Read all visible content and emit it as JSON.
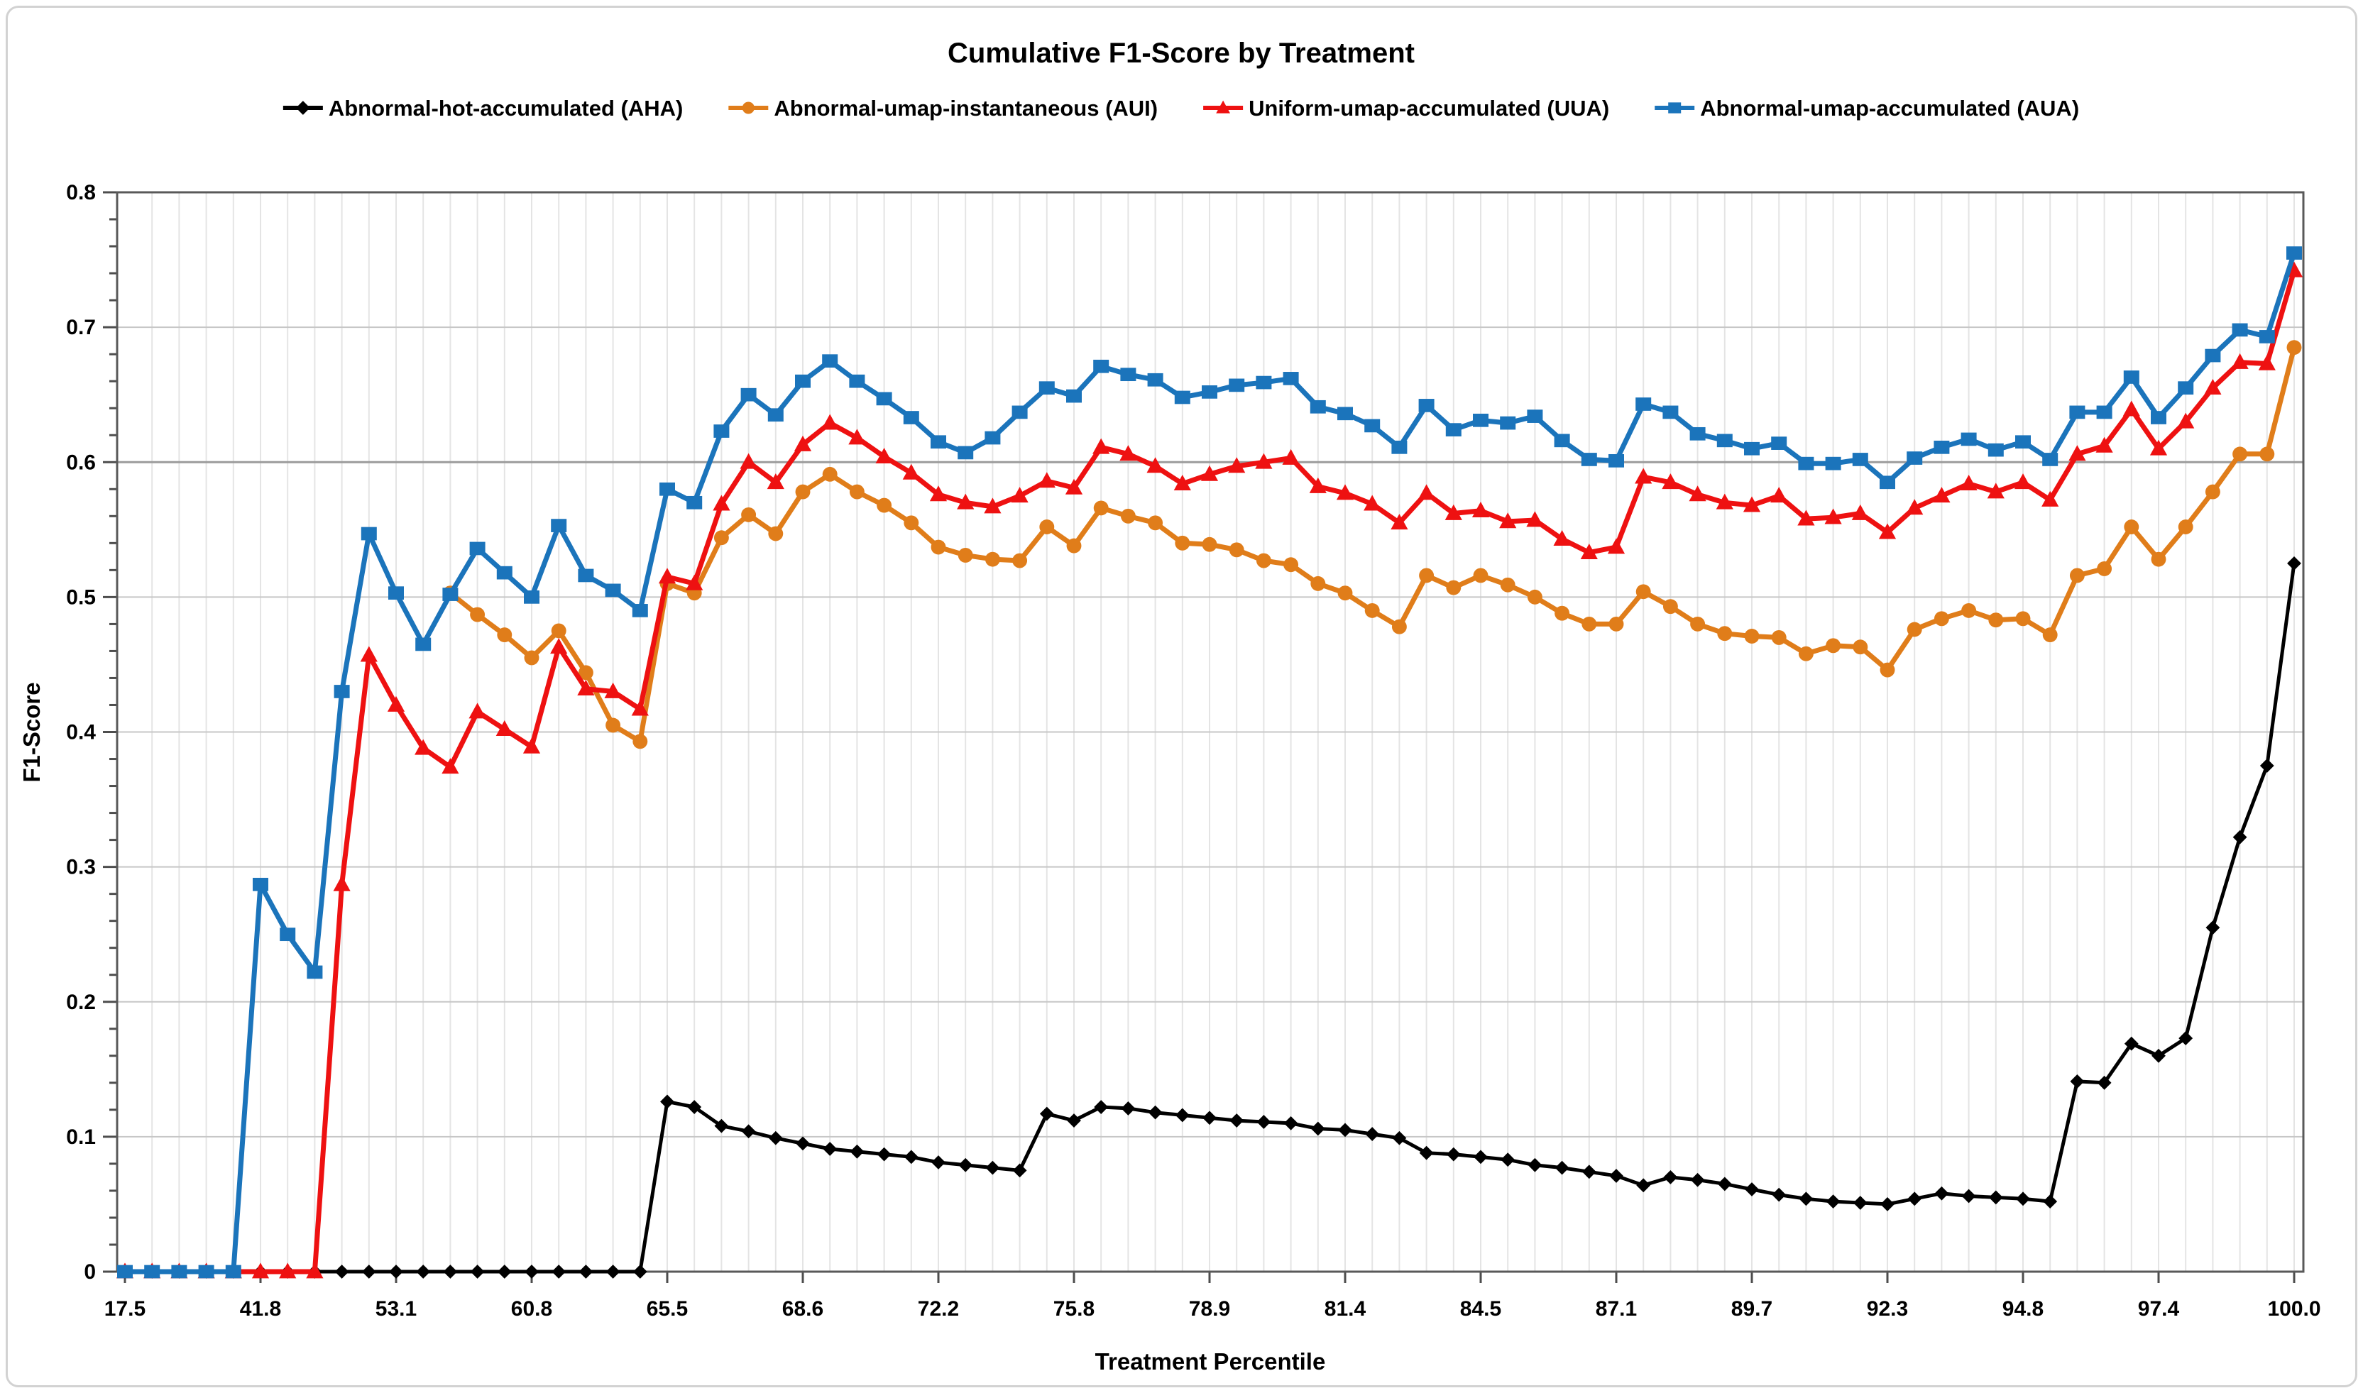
{
  "page": {
    "title": "Cumulative F1-Score by Treatment"
  },
  "chart_data": {
    "type": "line",
    "title": "Cumulative F1-Score by Treatment",
    "xlabel": "Treatment Percentile",
    "ylabel": "F1-Score",
    "ylim": [
      0,
      0.8
    ],
    "y_major_step": 0.1,
    "y_minor_step": 0.02,
    "grid": true,
    "legend_position": "top",
    "n_points": 81,
    "x_description": "81 evenly spaced treatment-percentile samples; every 5th point carries an axis label",
    "x_tick_every": 5,
    "x_tick_labels": [
      "17.5",
      "41.8",
      "53.1",
      "60.8",
      "65.5",
      "68.6",
      "72.2",
      "75.8",
      "78.9",
      "81.4",
      "84.5",
      "87.1",
      "89.7",
      "92.3",
      "94.8",
      "97.4",
      "100.0"
    ],
    "draw_order": [
      "AUI",
      "AHA",
      "UUA",
      "AUA"
    ],
    "series": [
      {
        "name": "Abnormal-hot-accumulated (AHA)",
        "abbr": "AHA",
        "color": "#000000",
        "marker": "diamond",
        "line_width": 5,
        "values": [
          0,
          0,
          0,
          0,
          0,
          0,
          0,
          0,
          0,
          0,
          0,
          0,
          0,
          0,
          0,
          0,
          0,
          0,
          0,
          0,
          0.126,
          0.122,
          0.108,
          0.104,
          0.099,
          0.095,
          0.091,
          0.089,
          0.087,
          0.085,
          0.081,
          0.079,
          0.077,
          0.075,
          0.117,
          0.112,
          0.122,
          0.121,
          0.118,
          0.116,
          0.114,
          0.112,
          0.111,
          0.11,
          0.106,
          0.105,
          0.102,
          0.099,
          0.088,
          0.087,
          0.085,
          0.083,
          0.079,
          0.077,
          0.074,
          0.071,
          0.064,
          0.07,
          0.068,
          0.065,
          0.061,
          0.057,
          0.054,
          0.052,
          0.051,
          0.05,
          0.054,
          0.058,
          0.056,
          0.055,
          0.054,
          0.052,
          0.141,
          0.14,
          0.169,
          0.16,
          0.173,
          0.255,
          0.322,
          0.375,
          0.525
        ]
      },
      {
        "name": "Abnormal-umap-instantaneous (AUI)",
        "abbr": "AUI",
        "color": "#E07D1A",
        "marker": "circle",
        "line_width": 7,
        "values": [
          null,
          null,
          null,
          null,
          null,
          null,
          null,
          null,
          null,
          null,
          null,
          null,
          0.503,
          0.487,
          0.472,
          0.455,
          0.475,
          0.444,
          0.405,
          0.393,
          0.51,
          0.503,
          0.544,
          0.561,
          0.547,
          0.578,
          0.591,
          0.578,
          0.568,
          0.555,
          0.537,
          0.531,
          0.528,
          0.527,
          0.552,
          0.538,
          0.566,
          0.56,
          0.555,
          0.54,
          0.539,
          0.535,
          0.527,
          0.524,
          0.51,
          0.503,
          0.49,
          0.478,
          0.516,
          0.507,
          0.516,
          0.509,
          0.5,
          0.488,
          0.48,
          0.48,
          0.504,
          0.493,
          0.48,
          0.473,
          0.471,
          0.47,
          0.458,
          0.464,
          0.463,
          0.446,
          0.476,
          0.484,
          0.49,
          0.483,
          0.484,
          0.472,
          0.516,
          0.521,
          0.552,
          0.528,
          0.552,
          0.578,
          0.606,
          0.606,
          0.685
        ]
      },
      {
        "name": "Uniform-umap-accumulated (UUA)",
        "abbr": "UUA",
        "color": "#EE1111",
        "marker": "triangle",
        "line_width": 7,
        "values": [
          0,
          0,
          0,
          0,
          0,
          0,
          0,
          0,
          0.287,
          0.457,
          0.42,
          0.388,
          0.374,
          0.415,
          0.402,
          0.389,
          0.463,
          0.432,
          0.43,
          0.417,
          0.515,
          0.51,
          0.569,
          0.6,
          0.585,
          0.613,
          0.629,
          0.618,
          0.604,
          0.592,
          0.576,
          0.57,
          0.567,
          0.575,
          0.586,
          0.581,
          0.611,
          0.606,
          0.597,
          0.584,
          0.591,
          0.597,
          0.6,
          0.603,
          0.582,
          0.577,
          0.569,
          0.555,
          0.577,
          0.562,
          0.564,
          0.556,
          0.557,
          0.543,
          0.533,
          0.537,
          0.589,
          0.585,
          0.576,
          0.57,
          0.568,
          0.575,
          0.558,
          0.559,
          0.562,
          0.548,
          0.566,
          0.575,
          0.584,
          0.578,
          0.585,
          0.572,
          0.606,
          0.612,
          0.639,
          0.61,
          0.63,
          0.655,
          0.674,
          0.673,
          0.742
        ]
      },
      {
        "name": "Abnormal-umap-accumulated (AUA)",
        "abbr": "AUA",
        "color": "#1B74BB",
        "marker": "square",
        "line_width": 7,
        "values": [
          0,
          0,
          0,
          0,
          0,
          0.287,
          0.25,
          0.222,
          0.43,
          0.547,
          0.503,
          0.465,
          0.502,
          0.536,
          0.518,
          0.5,
          0.553,
          0.516,
          0.505,
          0.49,
          0.58,
          0.57,
          0.623,
          0.65,
          0.635,
          0.66,
          0.675,
          0.66,
          0.647,
          0.633,
          0.615,
          0.607,
          0.618,
          0.637,
          0.655,
          0.649,
          0.671,
          0.665,
          0.661,
          0.648,
          0.652,
          0.657,
          0.659,
          0.662,
          0.641,
          0.636,
          0.627,
          0.611,
          0.642,
          0.624,
          0.631,
          0.629,
          0.634,
          0.616,
          0.602,
          0.601,
          0.643,
          0.637,
          0.621,
          0.616,
          0.61,
          0.614,
          0.599,
          0.599,
          0.602,
          0.585,
          0.603,
          0.611,
          0.617,
          0.609,
          0.615,
          0.602,
          0.637,
          0.637,
          0.663,
          0.633,
          0.655,
          0.679,
          0.698,
          0.693,
          0.755
        ]
      }
    ],
    "colors": {
      "grid_vertical": "#e4e4e4",
      "grid_horizontal": "#c7c7c7",
      "grid_mid_dark": "#9c9c9c",
      "axis": "#4d4d4d",
      "border": "#595959"
    }
  }
}
